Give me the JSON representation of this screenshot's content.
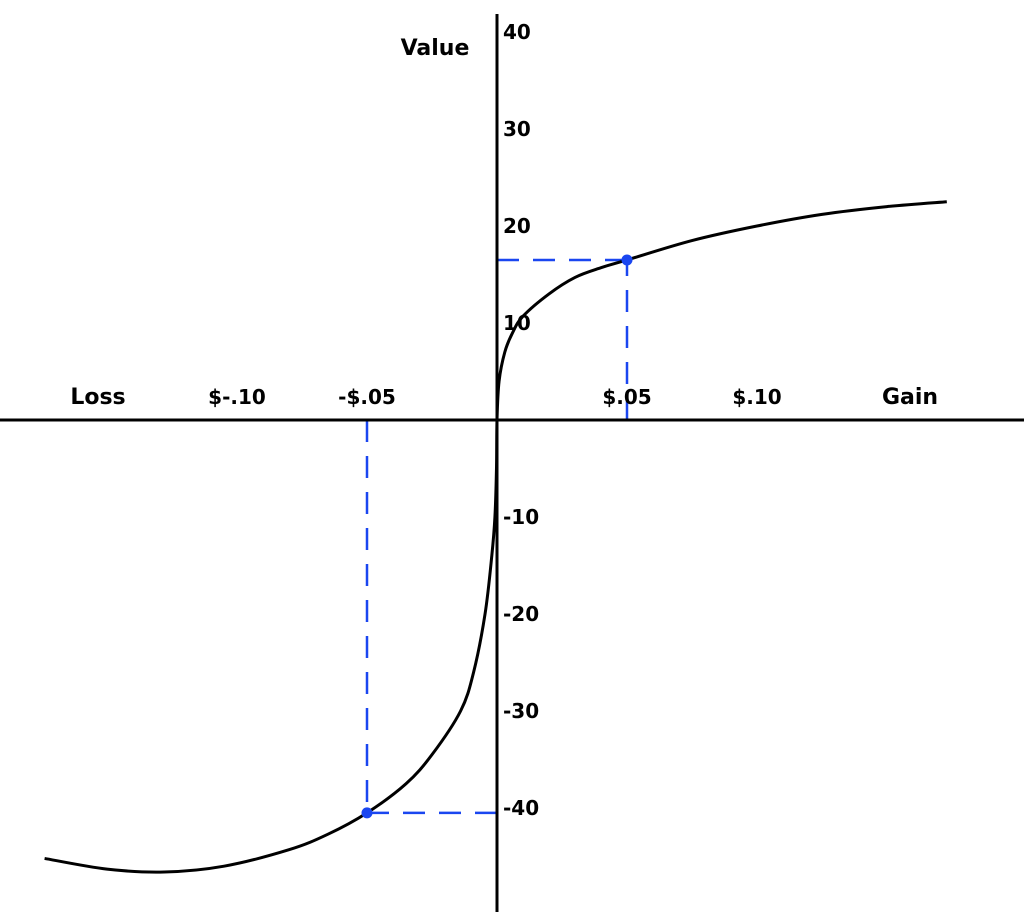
{
  "chart_data": {
    "type": "line",
    "title": "",
    "xlabel_left": "Loss",
    "xlabel_right": "Gain",
    "ylabel": "Value",
    "x_ticks": [
      {
        "value": -0.1,
        "label": "$-.10"
      },
      {
        "value": -0.05,
        "label": "-$.05"
      },
      {
        "value": 0.05,
        "label": "$.05"
      },
      {
        "value": 0.1,
        "label": "$.10"
      }
    ],
    "y_ticks": [
      {
        "value": 40,
        "label": "40"
      },
      {
        "value": 30,
        "label": "30"
      },
      {
        "value": 20,
        "label": "20"
      },
      {
        "value": 10,
        "label": "10"
      },
      {
        "value": -10,
        "label": "-10"
      },
      {
        "value": -20,
        "label": "-20"
      },
      {
        "value": -30,
        "label": "-30"
      },
      {
        "value": -40,
        "label": "-40"
      }
    ],
    "xlim": [
      -0.19,
      0.2
    ],
    "ylim": [
      -50,
      42
    ],
    "grid": false,
    "curve": {
      "color": "#000000",
      "points": [
        [
          -0.174,
          -45.2
        ],
        [
          -0.15,
          -46.3
        ],
        [
          -0.128,
          -46.6
        ],
        [
          -0.105,
          -46.0
        ],
        [
          -0.08,
          -44.3
        ],
        [
          -0.065,
          -42.7
        ],
        [
          -0.05,
          -40.5
        ],
        [
          -0.035,
          -37.5
        ],
        [
          -0.025,
          -34.5
        ],
        [
          -0.014,
          -30
        ],
        [
          -0.009,
          -26
        ],
        [
          -0.0046,
          -20
        ],
        [
          -0.002,
          -14
        ],
        [
          -0.0008,
          -10
        ],
        [
          -0.0002,
          -5
        ],
        [
          0,
          0
        ],
        [
          0.0008,
          4
        ],
        [
          0.003,
          7
        ],
        [
          0.006,
          9
        ],
        [
          0.01,
          10.7
        ],
        [
          0.02,
          13
        ],
        [
          0.03,
          14.7
        ],
        [
          0.04,
          15.7
        ],
        [
          0.05,
          16.5
        ],
        [
          0.075,
          18.5
        ],
        [
          0.1,
          20
        ],
        [
          0.125,
          21.2
        ],
        [
          0.15,
          22
        ],
        [
          0.173,
          22.5
        ]
      ]
    },
    "highlights": {
      "color": "#1a46f0",
      "points": [
        [
          0.05,
          16.5
        ],
        [
          -0.05,
          -40.5
        ]
      ]
    }
  }
}
